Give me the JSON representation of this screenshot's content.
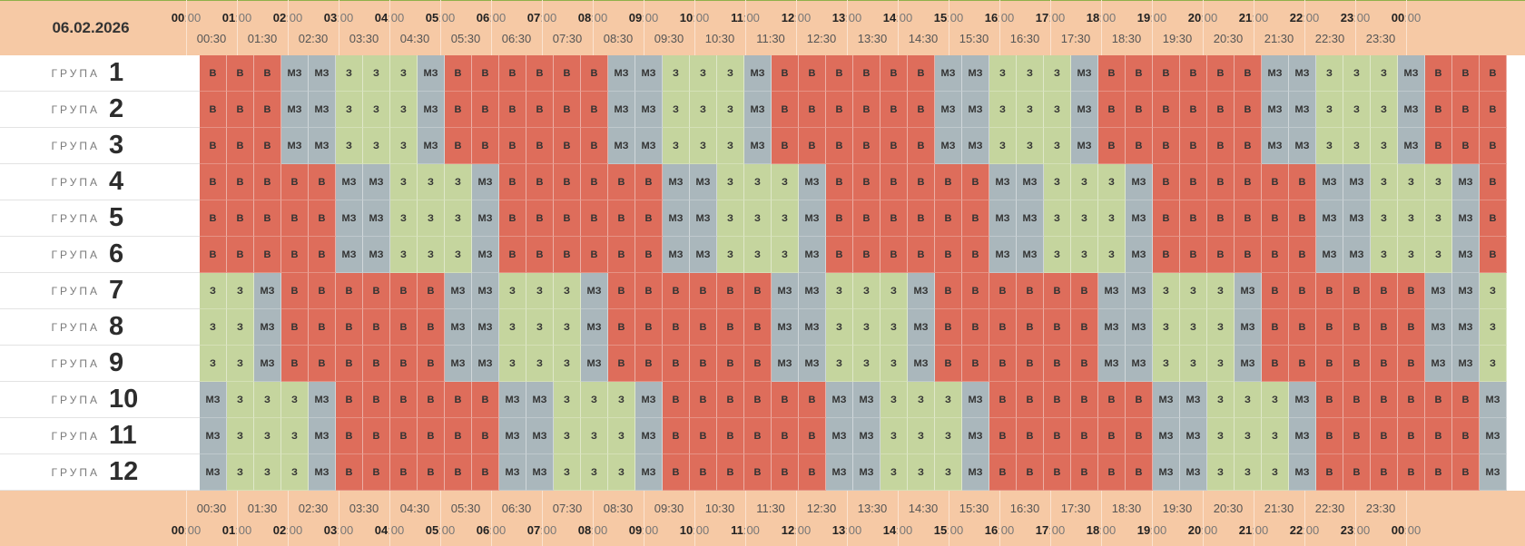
{
  "date": "06.02.2026",
  "group_word": "ГРУПА",
  "hour_labels": [
    "00",
    "01",
    "02",
    "03",
    "04",
    "05",
    "06",
    "07",
    "08",
    "09",
    "10",
    "11",
    "12",
    "13",
    "14",
    "15",
    "16",
    "17",
    "18",
    "19",
    "20",
    "21",
    "22",
    "23",
    "00"
  ],
  "minute_suffix": ":00",
  "half_labels": [
    "00:30",
    "01:30",
    "02:30",
    "03:30",
    "04:30",
    "05:30",
    "06:30",
    "07:30",
    "08:30",
    "09:30",
    "10:30",
    "11:30",
    "12:30",
    "13:30",
    "14:30",
    "15:30",
    "16:30",
    "17:30",
    "18:30",
    "19:30",
    "20:30",
    "21:30",
    "22:30",
    "23:30"
  ],
  "legend": {
    "В": "#de6d5b",
    "МЗ": "#aab7bc",
    "З": "#c5d59e"
  },
  "groups": [
    {
      "number": "1",
      "slots": [
        "В",
        "В",
        "В",
        "МЗ",
        "МЗ",
        "З",
        "З",
        "З",
        "МЗ",
        "В",
        "В",
        "В",
        "В",
        "В",
        "В",
        "МЗ",
        "МЗ",
        "З",
        "З",
        "З",
        "МЗ",
        "В",
        "В",
        "В",
        "В",
        "В",
        "В",
        "МЗ",
        "МЗ",
        "З",
        "З",
        "З",
        "МЗ",
        "В",
        "В",
        "В",
        "В",
        "В",
        "В",
        "МЗ",
        "МЗ",
        "З",
        "З",
        "З",
        "МЗ",
        "В",
        "В",
        "В"
      ]
    },
    {
      "number": "2",
      "slots": [
        "В",
        "В",
        "В",
        "МЗ",
        "МЗ",
        "З",
        "З",
        "З",
        "МЗ",
        "В",
        "В",
        "В",
        "В",
        "В",
        "В",
        "МЗ",
        "МЗ",
        "З",
        "З",
        "З",
        "МЗ",
        "В",
        "В",
        "В",
        "В",
        "В",
        "В",
        "МЗ",
        "МЗ",
        "З",
        "З",
        "З",
        "МЗ",
        "В",
        "В",
        "В",
        "В",
        "В",
        "В",
        "МЗ",
        "МЗ",
        "З",
        "З",
        "З",
        "МЗ",
        "В",
        "В",
        "В"
      ]
    },
    {
      "number": "3",
      "slots": [
        "В",
        "В",
        "В",
        "МЗ",
        "МЗ",
        "З",
        "З",
        "З",
        "МЗ",
        "В",
        "В",
        "В",
        "В",
        "В",
        "В",
        "МЗ",
        "МЗ",
        "З",
        "З",
        "З",
        "МЗ",
        "В",
        "В",
        "В",
        "В",
        "В",
        "В",
        "МЗ",
        "МЗ",
        "З",
        "З",
        "З",
        "МЗ",
        "В",
        "В",
        "В",
        "В",
        "В",
        "В",
        "МЗ",
        "МЗ",
        "З",
        "З",
        "З",
        "МЗ",
        "В",
        "В",
        "В"
      ]
    },
    {
      "number": "4",
      "slots": [
        "В",
        "В",
        "В",
        "В",
        "В",
        "МЗ",
        "МЗ",
        "З",
        "З",
        "З",
        "МЗ",
        "В",
        "В",
        "В",
        "В",
        "В",
        "В",
        "МЗ",
        "МЗ",
        "З",
        "З",
        "З",
        "МЗ",
        "В",
        "В",
        "В",
        "В",
        "В",
        "В",
        "МЗ",
        "МЗ",
        "З",
        "З",
        "З",
        "МЗ",
        "В",
        "В",
        "В",
        "В",
        "В",
        "В",
        "МЗ",
        "МЗ",
        "З",
        "З",
        "З",
        "МЗ",
        "В"
      ]
    },
    {
      "number": "5",
      "slots": [
        "В",
        "В",
        "В",
        "В",
        "В",
        "МЗ",
        "МЗ",
        "З",
        "З",
        "З",
        "МЗ",
        "В",
        "В",
        "В",
        "В",
        "В",
        "В",
        "МЗ",
        "МЗ",
        "З",
        "З",
        "З",
        "МЗ",
        "В",
        "В",
        "В",
        "В",
        "В",
        "В",
        "МЗ",
        "МЗ",
        "З",
        "З",
        "З",
        "МЗ",
        "В",
        "В",
        "В",
        "В",
        "В",
        "В",
        "МЗ",
        "МЗ",
        "З",
        "З",
        "З",
        "МЗ",
        "В"
      ]
    },
    {
      "number": "6",
      "slots": [
        "В",
        "В",
        "В",
        "В",
        "В",
        "МЗ",
        "МЗ",
        "З",
        "З",
        "З",
        "МЗ",
        "В",
        "В",
        "В",
        "В",
        "В",
        "В",
        "МЗ",
        "МЗ",
        "З",
        "З",
        "З",
        "МЗ",
        "В",
        "В",
        "В",
        "В",
        "В",
        "В",
        "МЗ",
        "МЗ",
        "З",
        "З",
        "З",
        "МЗ",
        "В",
        "В",
        "В",
        "В",
        "В",
        "В",
        "МЗ",
        "МЗ",
        "З",
        "З",
        "З",
        "МЗ",
        "В"
      ]
    },
    {
      "number": "7",
      "slots": [
        "З",
        "З",
        "МЗ",
        "В",
        "В",
        "В",
        "В",
        "В",
        "В",
        "МЗ",
        "МЗ",
        "З",
        "З",
        "З",
        "МЗ",
        "В",
        "В",
        "В",
        "В",
        "В",
        "В",
        "МЗ",
        "МЗ",
        "З",
        "З",
        "З",
        "МЗ",
        "В",
        "В",
        "В",
        "В",
        "В",
        "В",
        "МЗ",
        "МЗ",
        "З",
        "З",
        "З",
        "МЗ",
        "В",
        "В",
        "В",
        "В",
        "В",
        "В",
        "МЗ",
        "МЗ",
        "З"
      ]
    },
    {
      "number": "8",
      "slots": [
        "З",
        "З",
        "МЗ",
        "В",
        "В",
        "В",
        "В",
        "В",
        "В",
        "МЗ",
        "МЗ",
        "З",
        "З",
        "З",
        "МЗ",
        "В",
        "В",
        "В",
        "В",
        "В",
        "В",
        "МЗ",
        "МЗ",
        "З",
        "З",
        "З",
        "МЗ",
        "В",
        "В",
        "В",
        "В",
        "В",
        "В",
        "МЗ",
        "МЗ",
        "З",
        "З",
        "З",
        "МЗ",
        "В",
        "В",
        "В",
        "В",
        "В",
        "В",
        "МЗ",
        "МЗ",
        "З"
      ]
    },
    {
      "number": "9",
      "slots": [
        "З",
        "З",
        "МЗ",
        "В",
        "В",
        "В",
        "В",
        "В",
        "В",
        "МЗ",
        "МЗ",
        "З",
        "З",
        "З",
        "МЗ",
        "В",
        "В",
        "В",
        "В",
        "В",
        "В",
        "МЗ",
        "МЗ",
        "З",
        "З",
        "З",
        "МЗ",
        "В",
        "В",
        "В",
        "В",
        "В",
        "В",
        "МЗ",
        "МЗ",
        "З",
        "З",
        "З",
        "МЗ",
        "В",
        "В",
        "В",
        "В",
        "В",
        "В",
        "МЗ",
        "МЗ",
        "З"
      ]
    },
    {
      "number": "10",
      "slots": [
        "МЗ",
        "З",
        "З",
        "З",
        "МЗ",
        "В",
        "В",
        "В",
        "В",
        "В",
        "В",
        "МЗ",
        "МЗ",
        "З",
        "З",
        "З",
        "МЗ",
        "В",
        "В",
        "В",
        "В",
        "В",
        "В",
        "МЗ",
        "МЗ",
        "З",
        "З",
        "З",
        "МЗ",
        "В",
        "В",
        "В",
        "В",
        "В",
        "В",
        "МЗ",
        "МЗ",
        "З",
        "З",
        "З",
        "МЗ",
        "В",
        "В",
        "В",
        "В",
        "В",
        "В",
        "МЗ"
      ]
    },
    {
      "number": "11",
      "slots": [
        "МЗ",
        "З",
        "З",
        "З",
        "МЗ",
        "В",
        "В",
        "В",
        "В",
        "В",
        "В",
        "МЗ",
        "МЗ",
        "З",
        "З",
        "З",
        "МЗ",
        "В",
        "В",
        "В",
        "В",
        "В",
        "В",
        "МЗ",
        "МЗ",
        "З",
        "З",
        "З",
        "МЗ",
        "В",
        "В",
        "В",
        "В",
        "В",
        "В",
        "МЗ",
        "МЗ",
        "З",
        "З",
        "З",
        "МЗ",
        "В",
        "В",
        "В",
        "В",
        "В",
        "В",
        "МЗ"
      ]
    },
    {
      "number": "12",
      "slots": [
        "МЗ",
        "З",
        "З",
        "З",
        "МЗ",
        "В",
        "В",
        "В",
        "В",
        "В",
        "В",
        "МЗ",
        "МЗ",
        "З",
        "З",
        "З",
        "МЗ",
        "В",
        "В",
        "В",
        "В",
        "В",
        "В",
        "МЗ",
        "МЗ",
        "З",
        "З",
        "З",
        "МЗ",
        "В",
        "В",
        "В",
        "В",
        "В",
        "В",
        "МЗ",
        "МЗ",
        "З",
        "З",
        "З",
        "МЗ",
        "В",
        "В",
        "В",
        "В",
        "В",
        "В",
        "МЗ"
      ]
    }
  ]
}
